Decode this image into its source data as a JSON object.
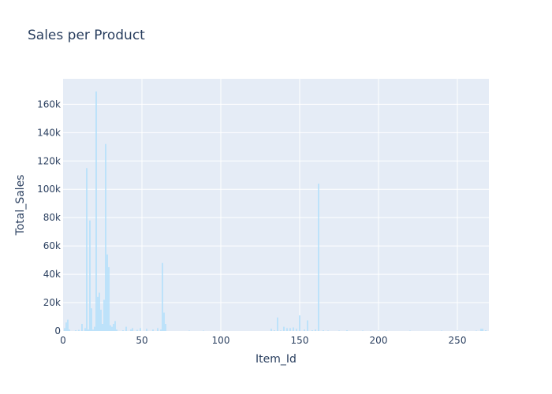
{
  "chart_data": {
    "type": "bar",
    "title": "Sales per Product",
    "xlabel": "Item_Id",
    "ylabel": "Total_Sales",
    "xlim": [
      0,
      270
    ],
    "ylim": [
      0,
      178000
    ],
    "x_ticks": [
      0,
      50,
      100,
      150,
      200,
      250
    ],
    "x_tick_labels": [
      "0",
      "50",
      "100",
      "150",
      "200",
      "250"
    ],
    "y_ticks": [
      0,
      20000,
      40000,
      60000,
      80000,
      100000,
      120000,
      140000,
      160000
    ],
    "y_tick_labels": [
      "0",
      "20k",
      "40k",
      "60k",
      "80k",
      "100k",
      "120k",
      "140k",
      "160k"
    ],
    "grid": true,
    "colors": {
      "bar": "#b3e0fb",
      "plot_bg": "#e5ecf6",
      "grid": "#ffffff",
      "text": "#2a3f5f"
    },
    "series": [
      {
        "x": [
          1,
          2,
          3,
          4,
          8,
          10,
          12,
          14,
          15,
          16,
          17,
          18,
          19,
          20,
          21,
          22,
          23,
          24,
          25,
          26,
          27,
          28,
          29,
          30,
          31,
          32,
          33,
          34,
          38,
          40,
          43,
          44,
          47,
          49,
          53,
          57,
          60,
          62,
          63,
          64,
          65,
          80,
          89,
          132,
          134,
          136,
          138,
          140,
          142,
          144,
          146,
          148,
          150,
          153,
          155,
          158,
          160,
          162,
          165,
          168,
          175,
          180,
          190,
          195,
          200,
          205,
          220,
          240,
          250,
          255,
          262,
          265,
          266,
          268
        ],
        "values": [
          2000,
          6000,
          8000,
          1000,
          500,
          800,
          5000,
          2000,
          115000,
          1000,
          78000,
          16000,
          1000,
          3000,
          169000,
          24000,
          27000,
          15000,
          5000,
          22000,
          132000,
          54000,
          45000,
          4000,
          3000,
          5000,
          7000,
          1000,
          500,
          3000,
          1000,
          2000,
          800,
          2000,
          1500,
          1000,
          2000,
          1000,
          48000,
          13000,
          5000,
          300,
          300,
          1500,
          500,
          9500,
          400,
          3000,
          2000,
          2000,
          2500,
          1500,
          11000,
          1000,
          7500,
          500,
          1000,
          104000,
          500,
          300,
          300,
          500,
          300,
          300,
          300,
          300,
          300,
          300,
          300,
          300,
          300,
          1500,
          1500,
          500
        ]
      }
    ]
  }
}
